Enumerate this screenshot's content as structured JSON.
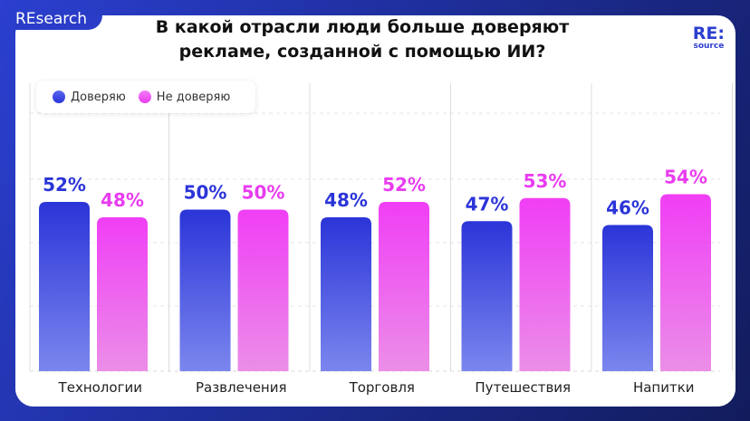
{
  "brand": "REsearch",
  "logo": {
    "top": "RE:",
    "bottom": "source"
  },
  "chart_data": {
    "type": "bar",
    "title": "В какой отрасли люди больше доверяют рекламе, созданной с помощью ИИ?",
    "categories": [
      "Технологии",
      "Развлечения",
      "Торговля",
      "Путешествия",
      "Напитки"
    ],
    "series": [
      {
        "name": "Доверяю",
        "values": [
          52,
          50,
          48,
          47,
          46
        ],
        "color": "#2b35d8"
      },
      {
        "name": "Не доверяю",
        "values": [
          48,
          50,
          52,
          53,
          54
        ],
        "color": "#e93cf0"
      }
    ],
    "unit": "%",
    "legend": "top-left",
    "grid": true
  }
}
